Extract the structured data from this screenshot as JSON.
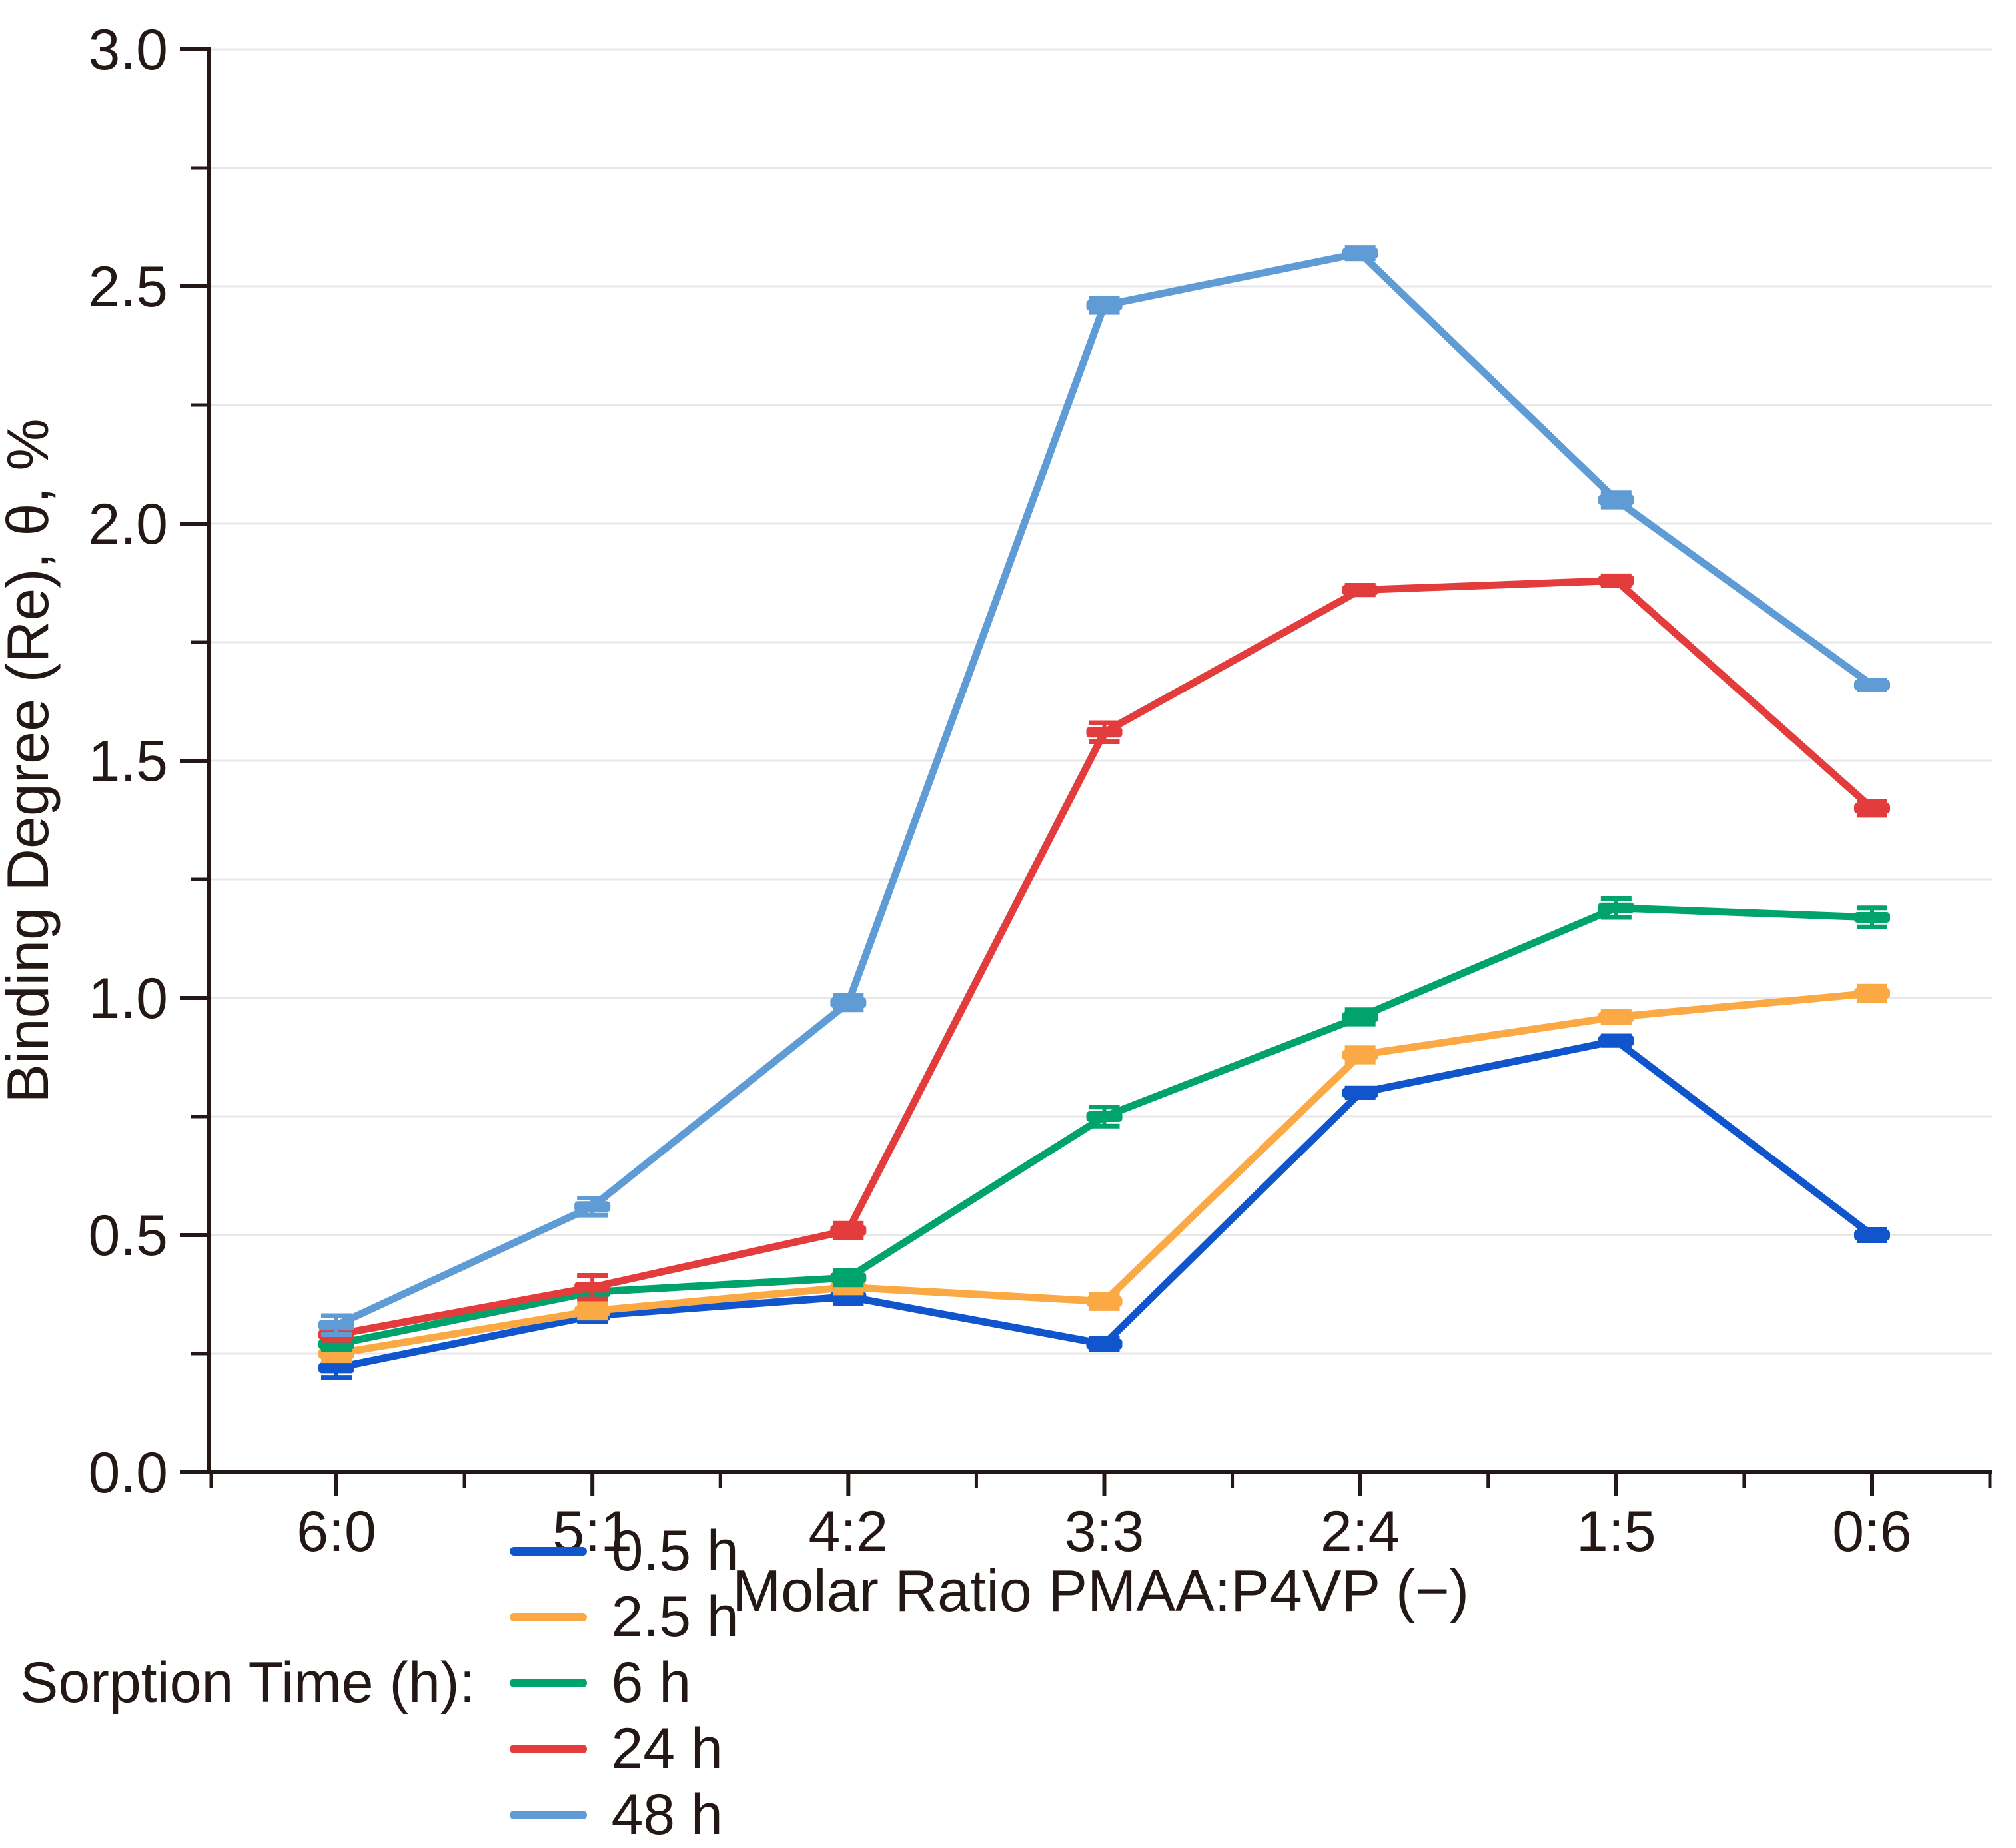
{
  "axes": {
    "y_label": "Binding Degree (Re), θ, %",
    "x_label": "Molar Ratio PMAA:P4VP (−)",
    "y_tick_labels": [
      "0.0",
      "0.5",
      "1.0",
      "1.5",
      "2.0",
      "2.5",
      "3.0"
    ],
    "x_tick_labels": [
      "6:0",
      "5:1",
      "4:2",
      "3:3",
      "2:4",
      "1:5",
      "0:6"
    ]
  },
  "legend": {
    "title": "Sorption Time (h):",
    "items": [
      {
        "label": "0.5 h",
        "color": "#1155CC"
      },
      {
        "label": "2.5 h",
        "color": "#FAA945"
      },
      {
        "label": "6 h",
        "color": "#00A36C"
      },
      {
        "label": "24 h",
        "color": "#E23C3C"
      },
      {
        "label": "48 h",
        "color": "#5F9BD5"
      }
    ]
  },
  "colors": {
    "text": "#231815",
    "axis": "#231815",
    "gridline": "#E7E7E7",
    "background": "#FFFFFF"
  },
  "chart_data": {
    "type": "line",
    "title": "",
    "xlabel": "Molar Ratio PMAA:P4VP (−)",
    "ylabel": "Binding Degree (Re), θ, %",
    "categories": [
      "6:0",
      "5:1",
      "4:2",
      "3:3",
      "2:4",
      "1:5",
      "0:6"
    ],
    "series": [
      {
        "name": "0.5 h",
        "color": "#1155CC",
        "values": [
          0.22,
          0.33,
          0.37,
          0.27,
          0.8,
          0.91,
          0.5
        ],
        "errors": [
          0.02,
          0.012,
          0.015,
          0.012,
          0.01,
          0.01,
          0.012
        ]
      },
      {
        "name": "2.5 h",
        "color": "#FAA945",
        "values": [
          0.25,
          0.34,
          0.39,
          0.36,
          0.88,
          0.96,
          1.01
        ],
        "errors": [
          0.015,
          0.015,
          0.012,
          0.015,
          0.015,
          0.012,
          0.015
        ]
      },
      {
        "name": "6 h",
        "color": "#00A36C",
        "values": [
          0.27,
          0.38,
          0.41,
          0.75,
          0.96,
          1.19,
          1.17
        ],
        "errors": [
          0.012,
          0.012,
          0.015,
          0.02,
          0.015,
          0.02,
          0.02
        ]
      },
      {
        "name": "24 h",
        "color": "#E23C3C",
        "values": [
          0.29,
          0.39,
          0.51,
          1.56,
          1.86,
          1.88,
          1.4
        ],
        "errors": [
          0.012,
          0.025,
          0.015,
          0.02,
          0.01,
          0.01,
          0.015
        ]
      },
      {
        "name": "48 h",
        "color": "#5F9BD5",
        "values": [
          0.31,
          0.56,
          0.99,
          2.46,
          2.57,
          2.05,
          1.66
        ],
        "errors": [
          0.02,
          0.018,
          0.015,
          0.015,
          0.012,
          0.015,
          0.01
        ]
      }
    ],
    "ylim": [
      0,
      3
    ],
    "ytick_step": 0.5,
    "minor_tick_step": 0.25,
    "grid": "horizontal, every 0.25, light gray",
    "legend_position": "bottom",
    "error_bars": true,
    "marker": "horizontal-dash"
  }
}
